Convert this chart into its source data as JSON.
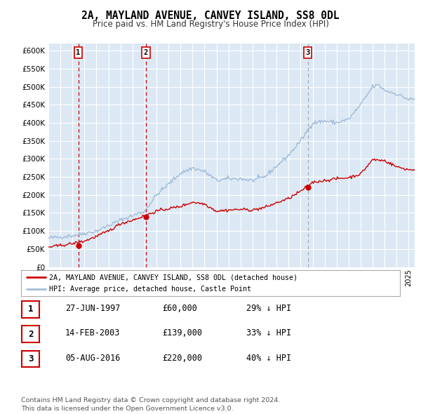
{
  "title": "2A, MAYLAND AVENUE, CANVEY ISLAND, SS8 0DL",
  "subtitle": "Price paid vs. HM Land Registry's House Price Index (HPI)",
  "background_color": "#dce9f5",
  "grid_color": "#ffffff",
  "hpi_line_color": "#a0bcd8",
  "price_line_color": "#cc0000",
  "ylim": [
    0,
    620000
  ],
  "yticks": [
    0,
    50000,
    100000,
    150000,
    200000,
    250000,
    300000,
    350000,
    400000,
    450000,
    500000,
    550000,
    600000
  ],
  "sales": [
    {
      "date_num": 1997.49,
      "price": 60000,
      "label": "1",
      "line_color": "#cc0000"
    },
    {
      "date_num": 2003.12,
      "price": 139000,
      "label": "2",
      "line_color": "#cc0000"
    },
    {
      "date_num": 2016.59,
      "price": 220000,
      "label": "3",
      "line_color": "#aaaaaa"
    }
  ],
  "legend_entries": [
    {
      "label": "2A, MAYLAND AVENUE, CANVEY ISLAND, SS8 0DL (detached house)",
      "color": "#cc0000"
    },
    {
      "label": "HPI: Average price, detached house, Castle Point",
      "color": "#a0bcd8"
    }
  ],
  "table_rows": [
    {
      "num": "1",
      "date": "27-JUN-1997",
      "price": "£60,000",
      "hpi": "29% ↓ HPI"
    },
    {
      "num": "2",
      "date": "14-FEB-2003",
      "price": "£139,000",
      "hpi": "33% ↓ HPI"
    },
    {
      "num": "3",
      "date": "05-AUG-2016",
      "price": "£220,000",
      "hpi": "40% ↓ HPI"
    }
  ],
  "footnote": "Contains HM Land Registry data © Crown copyright and database right 2024.\nThis data is licensed under the Open Government Licence v3.0.",
  "xmin": 1995.0,
  "xmax": 2025.5
}
